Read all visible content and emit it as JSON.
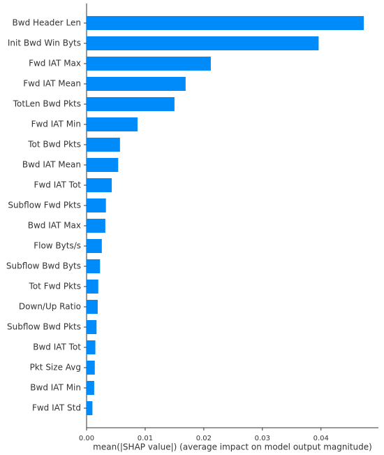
{
  "chart_data": {
    "type": "barh",
    "xlabel": "mean(|SHAP value|) (average impact on model output magnitude)",
    "categories": [
      "Bwd Header Len",
      "Init Bwd Win Byts",
      "Fwd IAT Max",
      "Fwd IAT Mean",
      "TotLen Bwd Pkts",
      "Fwd IAT Min",
      "Tot Bwd Pkts",
      "Bwd IAT Mean",
      "Fwd IAT Tot",
      "Subflow Fwd Pkts",
      "Bwd IAT Max",
      "Flow Byts/s",
      "Subflow Bwd Byts",
      "Tot Fwd Pkts",
      "Down/Up Ratio",
      "Subflow Bwd Pkts",
      "Bwd IAT Tot",
      "Pkt Size Avg",
      "Bwd IAT Min",
      "Fwd IAT Std"
    ],
    "values": [
      0.0473,
      0.0396,
      0.0212,
      0.0169,
      0.015,
      0.0087,
      0.0057,
      0.0054,
      0.0043,
      0.0033,
      0.0032,
      0.0026,
      0.0023,
      0.002,
      0.0019,
      0.0017,
      0.0015,
      0.0014,
      0.0013,
      0.001
    ],
    "color": "#008bfb",
    "xlim": [
      0,
      0.0498
    ],
    "xticks": [
      {
        "value": 0,
        "label": "0.00"
      },
      {
        "value": 0.01,
        "label": "0.01"
      },
      {
        "value": 0.02,
        "label": "0.02"
      },
      {
        "value": 0.03,
        "label": "0.03"
      },
      {
        "value": 0.04,
        "label": "0.04"
      }
    ]
  }
}
